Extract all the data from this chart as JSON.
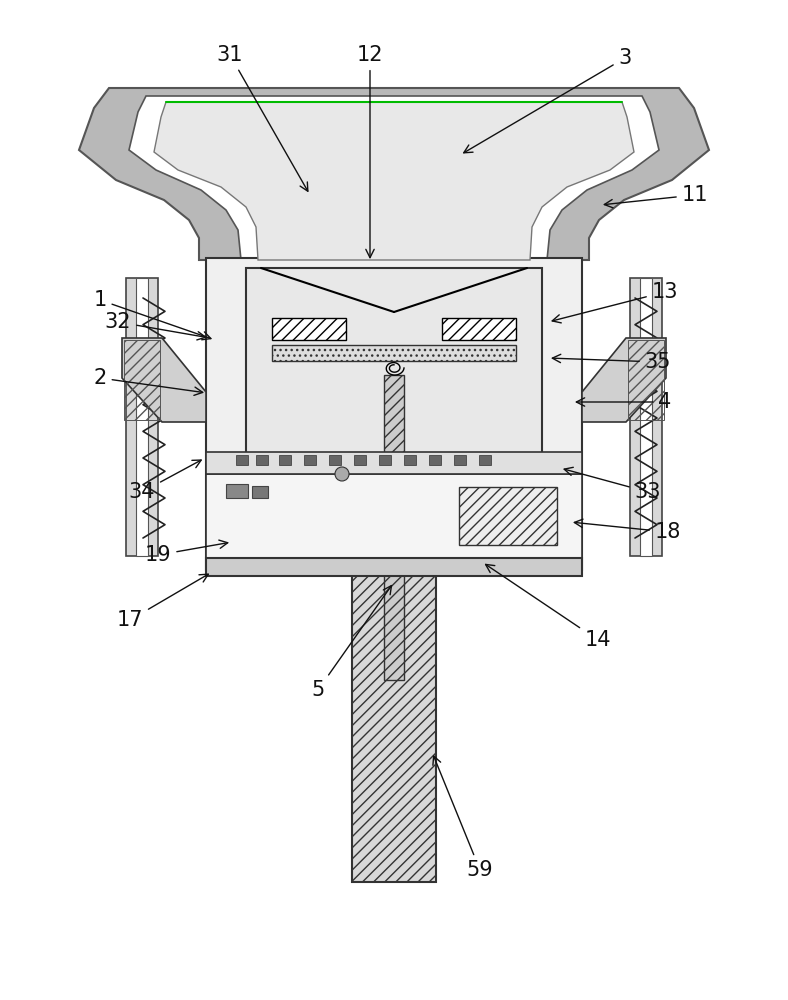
{
  "background_color": "#ffffff",
  "line_color": "#000000",
  "fig_width": 7.88,
  "fig_height": 10.0,
  "dpi": 100,
  "annotations": [
    [
      "1",
      100,
      300,
      215,
      340
    ],
    [
      "31",
      230,
      55,
      310,
      195
    ],
    [
      "12",
      370,
      55,
      370,
      262
    ],
    [
      "3",
      625,
      58,
      460,
      155
    ],
    [
      "11",
      695,
      195,
      600,
      205
    ],
    [
      "32",
      118,
      322,
      210,
      338
    ],
    [
      "2",
      100,
      378,
      207,
      393
    ],
    [
      "13",
      665,
      292,
      548,
      322
    ],
    [
      "35",
      658,
      362,
      548,
      358
    ],
    [
      "4",
      665,
      402,
      572,
      402
    ],
    [
      "34",
      142,
      492,
      205,
      458
    ],
    [
      "33",
      648,
      492,
      560,
      468
    ],
    [
      "5",
      318,
      690,
      394,
      582
    ],
    [
      "14",
      598,
      640,
      482,
      562
    ],
    [
      "19",
      158,
      555,
      232,
      542
    ],
    [
      "18",
      668,
      532,
      570,
      522
    ],
    [
      "17",
      130,
      620,
      212,
      572
    ],
    [
      "59",
      480,
      870,
      432,
      752
    ]
  ]
}
